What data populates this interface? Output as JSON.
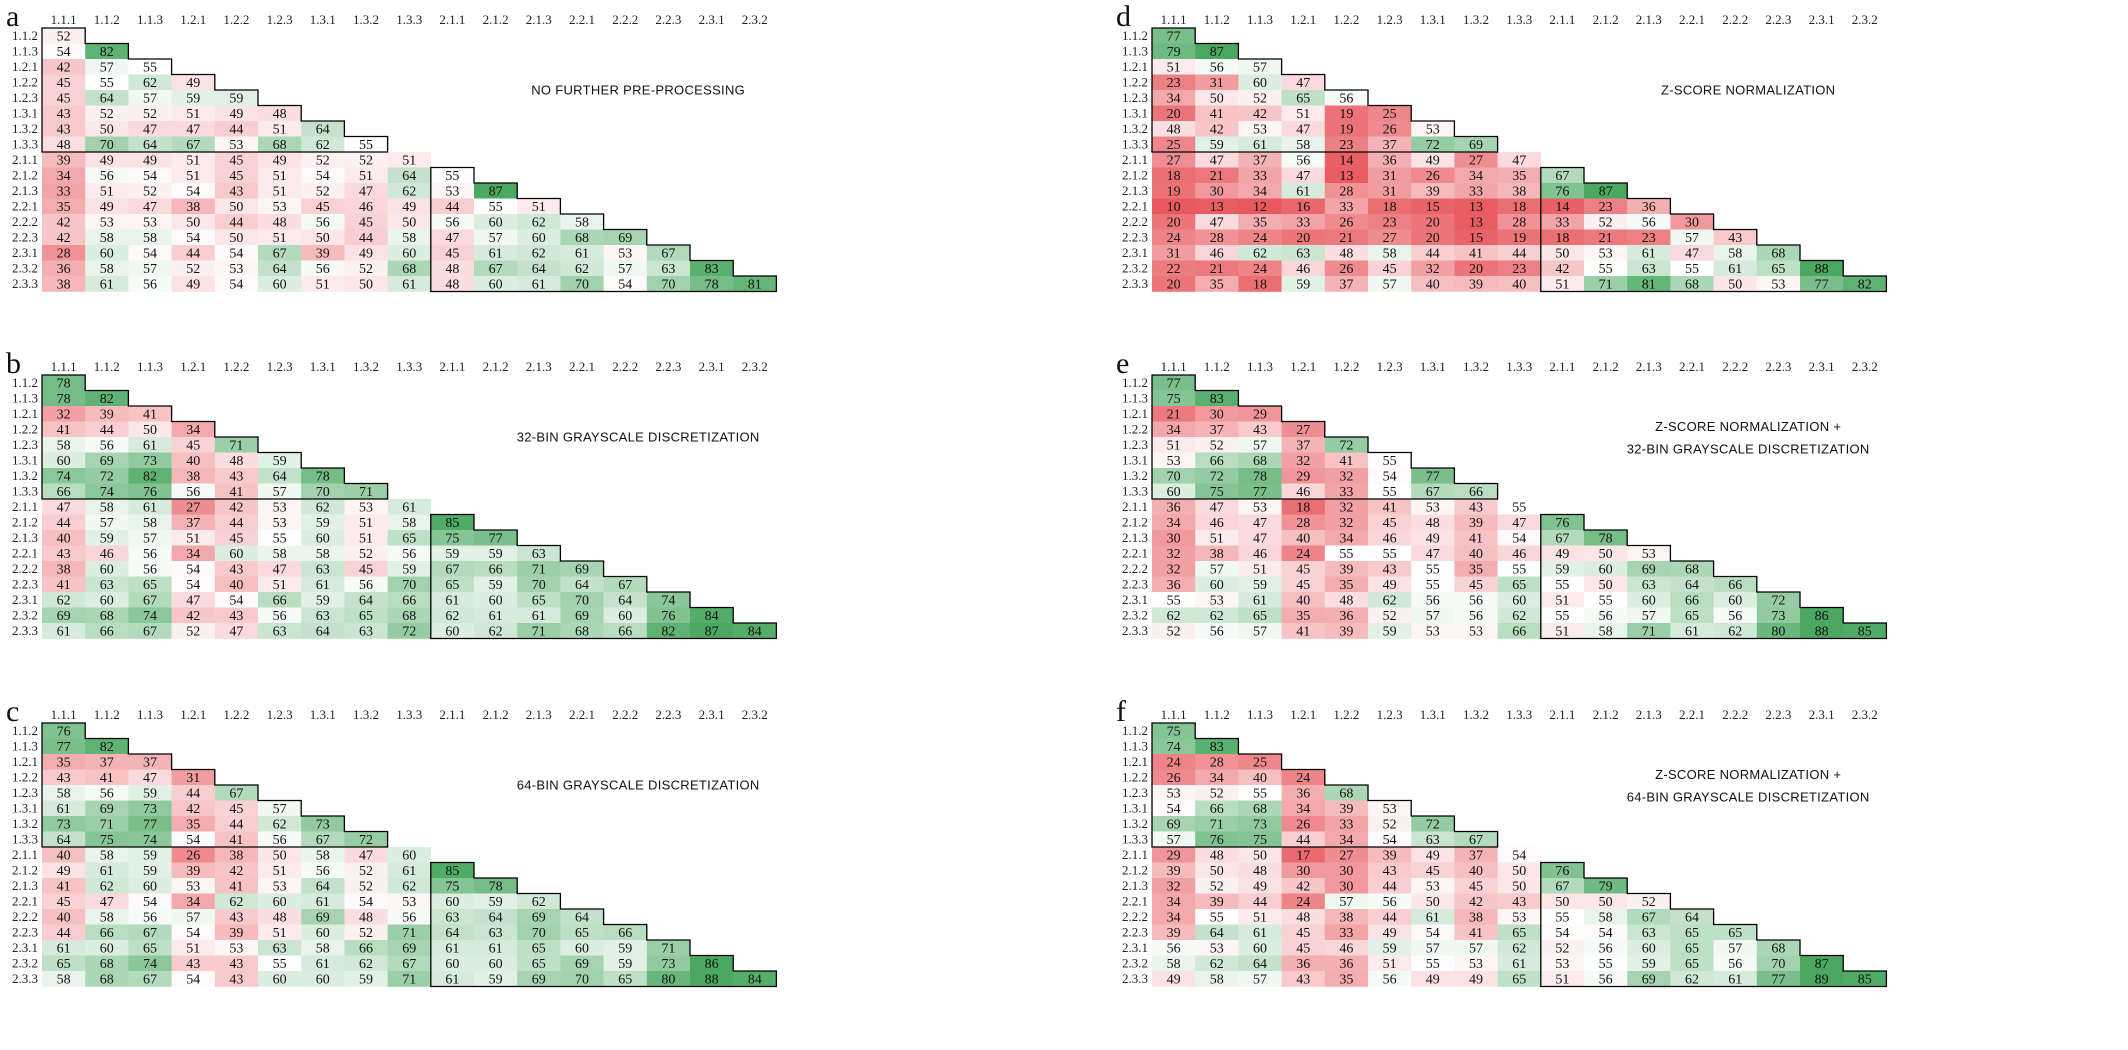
{
  "chart_data": {
    "type": "heatmap",
    "color_scale": {
      "low": "#e8595f",
      "mid": "#ffffff",
      "high": "#4aa861",
      "midpoint": 55
    },
    "x_categories": [
      "1.1.1",
      "1.1.2",
      "1.1.3",
      "1.2.1",
      "1.2.2",
      "1.2.3",
      "1.3.1",
      "1.3.2",
      "1.3.3",
      "2.1.1",
      "2.1.2",
      "2.1.3",
      "2.2.1",
      "2.2.2",
      "2.2.3",
      "2.3.1",
      "2.3.2"
    ],
    "y_categories": [
      "1.1.2",
      "1.1.3",
      "1.2.1",
      "1.2.2",
      "1.2.3",
      "1.3.1",
      "1.3.2",
      "1.3.3",
      "2.1.1",
      "2.1.2",
      "2.1.3",
      "2.2.1",
      "2.2.2",
      "2.2.3",
      "2.3.1",
      "2.3.2",
      "2.3.3"
    ],
    "panels": [
      {
        "label": "a",
        "title": [
          "NO FURTHER PRE-PROCESSING"
        ],
        "rows": [
          [
            52
          ],
          [
            54,
            82
          ],
          [
            42,
            57,
            55
          ],
          [
            45,
            55,
            62,
            49
          ],
          [
            45,
            64,
            57,
            59,
            59
          ],
          [
            43,
            52,
            52,
            51,
            49,
            48
          ],
          [
            43,
            50,
            47,
            47,
            44,
            51,
            64
          ],
          [
            48,
            70,
            64,
            67,
            53,
            68,
            62,
            55
          ],
          [
            39,
            49,
            49,
            51,
            45,
            49,
            52,
            52,
            51
          ],
          [
            34,
            56,
            54,
            51,
            45,
            51,
            54,
            51,
            64,
            55
          ],
          [
            33,
            51,
            52,
            54,
            43,
            51,
            52,
            47,
            62,
            53,
            87
          ],
          [
            35,
            49,
            47,
            38,
            50,
            53,
            45,
            46,
            49,
            44,
            55,
            51
          ],
          [
            42,
            53,
            53,
            50,
            44,
            48,
            56,
            45,
            50,
            56,
            60,
            62,
            58
          ],
          [
            42,
            58,
            58,
            54,
            50,
            51,
            50,
            44,
            58,
            47,
            57,
            60,
            68,
            69
          ],
          [
            28,
            60,
            54,
            44,
            54,
            67,
            39,
            49,
            60,
            45,
            61,
            62,
            61,
            53,
            67
          ],
          [
            36,
            58,
            57,
            52,
            53,
            64,
            56,
            52,
            68,
            48,
            67,
            64,
            62,
            57,
            63,
            83
          ],
          [
            38,
            61,
            56,
            49,
            54,
            60,
            51,
            50,
            61,
            48,
            60,
            61,
            70,
            54,
            70,
            78,
            81
          ]
        ]
      },
      {
        "label": "b",
        "title": [
          "32-BIN GRAYSCALE DISCRETIZATION"
        ],
        "rows": [
          [
            78
          ],
          [
            78,
            82
          ],
          [
            32,
            39,
            41
          ],
          [
            41,
            44,
            50,
            34
          ],
          [
            58,
            56,
            61,
            45,
            71
          ],
          [
            60,
            69,
            73,
            40,
            48,
            59
          ],
          [
            74,
            72,
            82,
            38,
            43,
            64,
            78
          ],
          [
            66,
            74,
            76,
            56,
            41,
            57,
            70,
            71
          ],
          [
            47,
            58,
            61,
            27,
            42,
            53,
            62,
            53,
            61
          ],
          [
            44,
            57,
            58,
            37,
            44,
            53,
            59,
            51,
            58,
            85
          ],
          [
            40,
            59,
            57,
            51,
            45,
            55,
            60,
            51,
            65,
            75,
            77
          ],
          [
            43,
            46,
            56,
            34,
            60,
            58,
            58,
            52,
            56,
            59,
            59,
            63
          ],
          [
            38,
            60,
            56,
            54,
            43,
            47,
            63,
            45,
            59,
            67,
            66,
            71,
            69
          ],
          [
            41,
            63,
            65,
            54,
            40,
            51,
            61,
            56,
            70,
            65,
            59,
            70,
            64,
            67
          ],
          [
            62,
            60,
            67,
            47,
            54,
            66,
            59,
            64,
            66,
            61,
            60,
            65,
            70,
            64,
            74
          ],
          [
            69,
            68,
            74,
            42,
            43,
            56,
            63,
            65,
            68,
            62,
            61,
            61,
            69,
            60,
            76,
            84
          ],
          [
            61,
            66,
            67,
            52,
            47,
            63,
            64,
            63,
            72,
            60,
            62,
            71,
            68,
            66,
            82,
            87,
            84
          ]
        ]
      },
      {
        "label": "c",
        "title": [
          "64-BIN GRAYSCALE DISCRETIZATION"
        ],
        "rows": [
          [
            76
          ],
          [
            77,
            82
          ],
          [
            35,
            37,
            37
          ],
          [
            43,
            41,
            47,
            31
          ],
          [
            58,
            56,
            59,
            44,
            67
          ],
          [
            61,
            69,
            73,
            42,
            45,
            57
          ],
          [
            73,
            71,
            77,
            35,
            44,
            62,
            73
          ],
          [
            64,
            75,
            74,
            54,
            41,
            56,
            67,
            72
          ],
          [
            40,
            58,
            59,
            26,
            38,
            50,
            58,
            47,
            60
          ],
          [
            49,
            61,
            59,
            39,
            42,
            51,
            56,
            52,
            61,
            85
          ],
          [
            41,
            62,
            60,
            53,
            41,
            53,
            64,
            52,
            62,
            75,
            78
          ],
          [
            45,
            47,
            54,
            34,
            62,
            60,
            61,
            54,
            53,
            60,
            59,
            62
          ],
          [
            40,
            58,
            56,
            57,
            43,
            48,
            69,
            48,
            56,
            63,
            64,
            69,
            64
          ],
          [
            44,
            66,
            67,
            54,
            39,
            51,
            60,
            52,
            71,
            64,
            63,
            70,
            65,
            66
          ],
          [
            61,
            60,
            65,
            51,
            53,
            63,
            58,
            66,
            69,
            61,
            61,
            65,
            60,
            59,
            71
          ],
          [
            65,
            68,
            74,
            43,
            43,
            55,
            61,
            62,
            67,
            60,
            60,
            65,
            69,
            59,
            73,
            86
          ],
          [
            58,
            68,
            67,
            54,
            43,
            60,
            60,
            59,
            71,
            61,
            59,
            69,
            70,
            65,
            80,
            88,
            84
          ]
        ]
      },
      {
        "label": "d",
        "title": [
          "Z-SCORE NORMALIZATION"
        ],
        "rows": [
          [
            77
          ],
          [
            79,
            87
          ],
          [
            51,
            56,
            57
          ],
          [
            23,
            31,
            60,
            47
          ],
          [
            34,
            50,
            52,
            65,
            56
          ],
          [
            20,
            41,
            42,
            51,
            19,
            25
          ],
          [
            48,
            42,
            53,
            47,
            19,
            26,
            53
          ],
          [
            25,
            59,
            61,
            58,
            23,
            37,
            72,
            69
          ],
          [
            27,
            47,
            37,
            56,
            14,
            36,
            49,
            27,
            47
          ],
          [
            18,
            21,
            33,
            47,
            13,
            31,
            26,
            34,
            35,
            67
          ],
          [
            19,
            30,
            34,
            61,
            28,
            31,
            39,
            33,
            38,
            76,
            87
          ],
          [
            10,
            13,
            12,
            16,
            33,
            18,
            15,
            13,
            18,
            14,
            23,
            36
          ],
          [
            20,
            47,
            35,
            33,
            26,
            23,
            20,
            13,
            28,
            33,
            52,
            56,
            30
          ],
          [
            24,
            28,
            24,
            20,
            21,
            27,
            20,
            15,
            19,
            18,
            21,
            23,
            57,
            43
          ],
          [
            31,
            46,
            62,
            63,
            48,
            58,
            44,
            41,
            44,
            50,
            53,
            61,
            47,
            58,
            68
          ],
          [
            22,
            21,
            24,
            46,
            26,
            45,
            32,
            20,
            23,
            42,
            55,
            63,
            55,
            61,
            65,
            88
          ],
          [
            20,
            35,
            18,
            59,
            37,
            57,
            40,
            39,
            40,
            51,
            71,
            81,
            68,
            50,
            53,
            77,
            82
          ]
        ]
      },
      {
        "label": "e",
        "title": [
          "Z-SCORE NORMALIZATION +",
          "32-BIN GRAYSCALE DISCRETIZATION"
        ],
        "rows": [
          [
            77
          ],
          [
            75,
            83
          ],
          [
            21,
            30,
            29
          ],
          [
            34,
            37,
            43,
            27
          ],
          [
            51,
            52,
            57,
            37,
            72
          ],
          [
            53,
            66,
            68,
            32,
            41,
            55
          ],
          [
            70,
            72,
            78,
            29,
            32,
            54,
            77
          ],
          [
            60,
            75,
            77,
            46,
            33,
            55,
            67,
            66
          ],
          [
            36,
            47,
            53,
            18,
            32,
            41,
            53,
            43,
            55
          ],
          [
            34,
            46,
            47,
            28,
            32,
            45,
            48,
            39,
            47,
            76
          ],
          [
            30,
            51,
            47,
            40,
            34,
            46,
            49,
            41,
            54,
            67,
            78
          ],
          [
            32,
            38,
            46,
            24,
            55,
            55,
            47,
            40,
            46,
            49,
            50,
            53
          ],
          [
            32,
            57,
            51,
            45,
            39,
            43,
            55,
            35,
            55,
            59,
            60,
            69,
            68
          ],
          [
            36,
            60,
            59,
            45,
            35,
            49,
            55,
            45,
            65,
            55,
            50,
            63,
            64,
            66
          ],
          [
            55,
            53,
            61,
            40,
            48,
            62,
            56,
            56,
            60,
            51,
            55,
            60,
            66,
            60,
            72
          ],
          [
            62,
            62,
            65,
            35,
            36,
            52,
            57,
            56,
            62,
            55,
            56,
            57,
            65,
            56,
            73,
            86
          ],
          [
            52,
            56,
            57,
            41,
            39,
            59,
            53,
            53,
            66,
            51,
            58,
            71,
            61,
            62,
            80,
            88,
            85
          ]
        ]
      },
      {
        "label": "f",
        "title": [
          "Z-SCORE NORMALIZATION +",
          "64-BIN GRAYSCALE DISCRETIZATION"
        ],
        "rows": [
          [
            75
          ],
          [
            74,
            83
          ],
          [
            24,
            28,
            25
          ],
          [
            26,
            34,
            40,
            24
          ],
          [
            53,
            52,
            55,
            36,
            68
          ],
          [
            54,
            66,
            68,
            34,
            39,
            53
          ],
          [
            69,
            71,
            73,
            26,
            33,
            52,
            72
          ],
          [
            57,
            76,
            75,
            44,
            34,
            54,
            63,
            67
          ],
          [
            29,
            48,
            50,
            17,
            27,
            39,
            49,
            37,
            54
          ],
          [
            39,
            50,
            48,
            30,
            30,
            43,
            45,
            40,
            50,
            76
          ],
          [
            32,
            52,
            49,
            42,
            30,
            44,
            53,
            45,
            50,
            67,
            79
          ],
          [
            34,
            39,
            44,
            24,
            57,
            56,
            50,
            42,
            43,
            50,
            50,
            52
          ],
          [
            34,
            55,
            51,
            48,
            38,
            44,
            61,
            38,
            53,
            55,
            58,
            67,
            64
          ],
          [
            39,
            64,
            61,
            45,
            33,
            49,
            54,
            41,
            65,
            54,
            54,
            63,
            65,
            65
          ],
          [
            56,
            53,
            60,
            45,
            46,
            59,
            57,
            57,
            62,
            52,
            56,
            60,
            65,
            57,
            68
          ],
          [
            58,
            62,
            64,
            36,
            36,
            51,
            55,
            53,
            61,
            53,
            55,
            59,
            65,
            56,
            70,
            87
          ],
          [
            49,
            58,
            57,
            43,
            35,
            56,
            49,
            49,
            65,
            51,
            56,
            69,
            62,
            61,
            77,
            89,
            85
          ]
        ]
      }
    ]
  }
}
